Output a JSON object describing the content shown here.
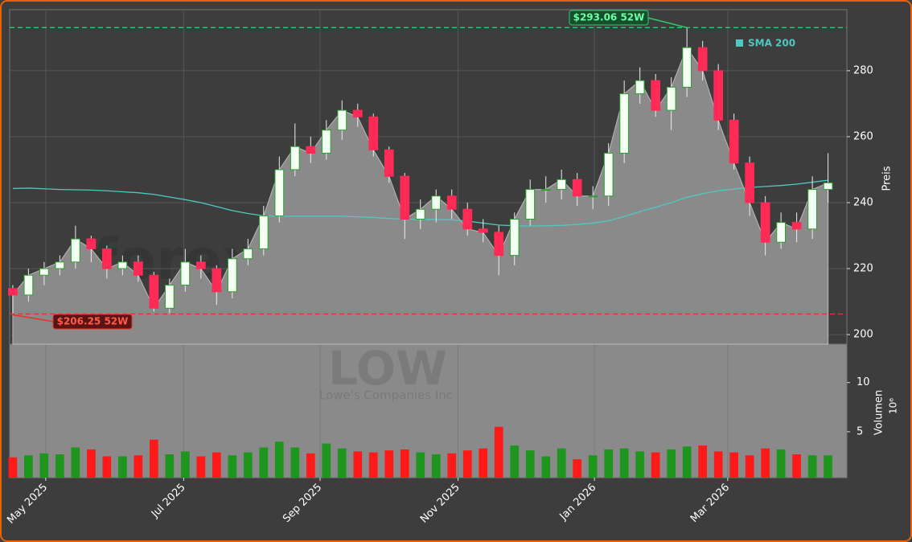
{
  "chart_data": {
    "type": "candlestick",
    "watermark": "forexsignale.trade",
    "ticker": "LOW",
    "company": "Lowe's Companies Inc",
    "y_label": "Preis",
    "volume_label": "Volumen",
    "volume_unit": "10⁶",
    "xlim": [
      -0.2,
      53.2
    ],
    "xticks": [
      {
        "value": 2.1,
        "label": "May 2025"
      },
      {
        "value": 10.9,
        "label": "Jul 2025"
      },
      {
        "value": 19.6,
        "label": "Sep 2025"
      },
      {
        "value": 28.4,
        "label": "Nov 2025"
      },
      {
        "value": 37.1,
        "label": "Jan 2026"
      },
      {
        "value": 45.6,
        "label": "Mar 2026"
      }
    ],
    "ylim": [
      197.1,
      298.5
    ],
    "yticks": [
      200,
      220,
      240,
      260,
      280
    ],
    "volume_ylim": [
      0.33,
      13.9
    ],
    "volume_yticks": [
      5,
      10
    ],
    "grid": true,
    "up_color": "#2ca02c",
    "down_color": "#ff2a55",
    "volume_up_color": "#1e961e",
    "volume_down_color": "#ff1a1a",
    "area_color": "#8a8a8a",
    "open": [
      214,
      212,
      218,
      220,
      222,
      229,
      226,
      220,
      222,
      218,
      208,
      215,
      222,
      220,
      213,
      223,
      226,
      236,
      250,
      257,
      255,
      262,
      268,
      266,
      256,
      248,
      235,
      238,
      242,
      238,
      232,
      231,
      224,
      235,
      244,
      244,
      247,
      242,
      242,
      255,
      273,
      277,
      268,
      275,
      287,
      280,
      265,
      252,
      240,
      228,
      234,
      232,
      244
    ],
    "high": [
      215,
      220,
      222,
      224,
      233,
      230,
      227,
      224,
      224,
      219,
      217,
      226,
      224,
      221,
      226,
      229,
      239,
      254,
      264,
      260,
      265,
      271,
      270,
      267,
      257,
      249,
      241,
      244,
      244,
      240,
      235,
      233,
      237,
      247,
      248,
      250,
      249,
      245,
      258,
      277,
      281,
      279,
      278,
      293.06,
      289,
      282,
      267,
      254,
      242,
      237,
      237,
      248,
      255
    ],
    "low": [
      206.25,
      210,
      215,
      218,
      220,
      222,
      217,
      218,
      216,
      207,
      206.5,
      213,
      217,
      209,
      211,
      221,
      224,
      234,
      248,
      252,
      253,
      259,
      263,
      254,
      246,
      229,
      232,
      234,
      235,
      230,
      228,
      218,
      221,
      233,
      240,
      241,
      239,
      238,
      239,
      252,
      270,
      266,
      262,
      272,
      277,
      262,
      250,
      236,
      224,
      226,
      228,
      229,
      240
    ],
    "close": [
      212,
      218,
      220,
      222,
      229,
      226,
      220,
      222,
      218,
      208,
      215,
      222,
      220,
      213,
      223,
      226,
      236,
      250,
      257,
      255,
      262,
      268,
      266,
      256,
      248,
      235,
      238,
      242,
      238,
      232,
      231,
      224,
      235,
      244,
      244,
      247,
      242,
      242,
      255,
      273,
      277,
      268,
      275,
      287,
      280,
      265,
      252,
      240,
      228,
      234,
      232,
      244,
      246
    ],
    "volume": [
      2.4,
      2.6,
      2.8,
      2.7,
      3.4,
      3.2,
      2.5,
      2.5,
      2.6,
      4.2,
      2.7,
      3.0,
      2.5,
      2.9,
      2.6,
      2.9,
      3.4,
      4.0,
      3.4,
      2.8,
      3.8,
      3.3,
      3.0,
      2.9,
      3.1,
      3.2,
      2.9,
      2.7,
      2.8,
      3.1,
      3.3,
      5.5,
      3.6,
      3.1,
      2.5,
      3.3,
      2.2,
      2.6,
      3.2,
      3.3,
      3.0,
      2.9,
      3.2,
      3.5,
      3.6,
      3.0,
      2.9,
      2.6,
      3.3,
      3.2,
      2.7,
      2.6,
      2.6
    ],
    "series": [
      {
        "name": "SMA 200",
        "color": "#4fc9c0",
        "values": [
          244.3,
          244.4,
          244.2,
          244.0,
          243.9,
          243.8,
          243.6,
          243.3,
          243.0,
          242.5,
          241.7,
          240.9,
          240.0,
          238.8,
          237.6,
          236.7,
          236.0,
          235.9,
          235.9,
          235.9,
          235.9,
          235.9,
          235.7,
          235.5,
          235.2,
          235.0,
          234.9,
          234.9,
          234.8,
          234.4,
          233.8,
          233.2,
          233.0,
          232.9,
          233.0,
          233.1,
          233.4,
          233.8,
          234.5,
          235.8,
          237.3,
          238.6,
          240.0,
          241.6,
          242.7,
          243.6,
          244.1,
          244.6,
          244.9,
          245.2,
          245.6,
          246.2,
          246.8
        ]
      }
    ],
    "annotations": [
      {
        "value": 293.06,
        "label": "$293.06 52W",
        "color": "#2ecc71",
        "index": 43
      },
      {
        "value": 206.25,
        "label": "$206.25 52W",
        "color": "#e8322e",
        "index": 0
      }
    ]
  }
}
